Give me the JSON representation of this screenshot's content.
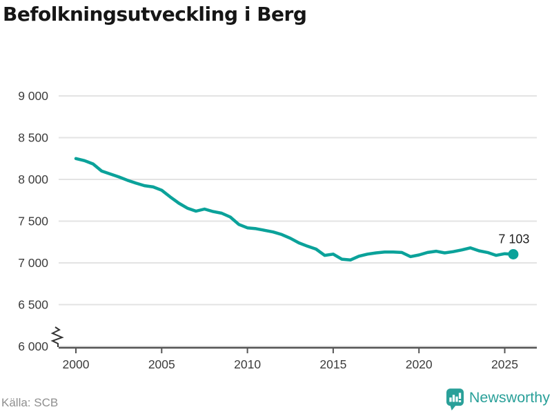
{
  "title": "Befolkningsutveckling i Berg",
  "footer": {
    "source": "Källa: SCB",
    "brand": "Newsworthy"
  },
  "colors": {
    "line": "#0ba29a",
    "brand": "#2aa099",
    "grid": "#e3e3e3",
    "axis": "#555555",
    "break_mark": "#333333",
    "tick_label": "#3c3c3c",
    "annotation": "#222222",
    "source_text": "#8f8f8f",
    "title_text": "#161616"
  },
  "chart_data": {
    "type": "line",
    "title": "Befolkningsutveckling i Berg",
    "xlabel": "",
    "ylabel": "",
    "ylim": [
      6000,
      9000
    ],
    "xlim": [
      1999,
      2027.7
    ],
    "y_axis_break": true,
    "grid": "horizontal",
    "legend": "none",
    "xticks": [
      2000,
      2005,
      2010,
      2015,
      2020,
      2025
    ],
    "xtick_labels": [
      "2000",
      "2005",
      "2010",
      "2015",
      "2020",
      "2025"
    ],
    "yticks": [
      6000,
      6500,
      7000,
      7500,
      8000,
      8500,
      9000
    ],
    "ytick_labels": [
      "6 000",
      "6 500",
      "7 000",
      "7 500",
      "8 000",
      "8 500",
      "9 000"
    ],
    "end_label": "7 103",
    "end_value": 7103,
    "series": [
      {
        "name": "Befolkning",
        "x": [
          2000,
          2000.5,
          2001,
          2001.5,
          2002,
          2002.5,
          2003,
          2003.5,
          2004,
          2004.5,
          2005,
          2005.5,
          2006,
          2006.5,
          2007,
          2007.5,
          2008,
          2008.5,
          2009,
          2009.5,
          2010,
          2010.5,
          2011,
          2011.5,
          2012,
          2012.5,
          2013,
          2013.5,
          2014,
          2014.5,
          2015,
          2015.5,
          2016,
          2016.5,
          2017,
          2017.5,
          2018,
          2018.5,
          2019,
          2019.5,
          2020,
          2020.5,
          2021,
          2021.5,
          2022,
          2022.5,
          2023,
          2023.5,
          2024,
          2024.5,
          2025,
          2025.5
        ],
        "values": [
          8250,
          8225,
          8185,
          8100,
          8065,
          8030,
          7990,
          7955,
          7925,
          7910,
          7870,
          7790,
          7715,
          7655,
          7620,
          7645,
          7615,
          7595,
          7550,
          7460,
          7420,
          7410,
          7390,
          7370,
          7340,
          7295,
          7240,
          7200,
          7165,
          7090,
          7105,
          7045,
          7035,
          7080,
          7105,
          7120,
          7130,
          7130,
          7125,
          7075,
          7095,
          7125,
          7140,
          7120,
          7135,
          7155,
          7180,
          7145,
          7125,
          7090,
          7110,
          7103
        ]
      }
    ]
  }
}
